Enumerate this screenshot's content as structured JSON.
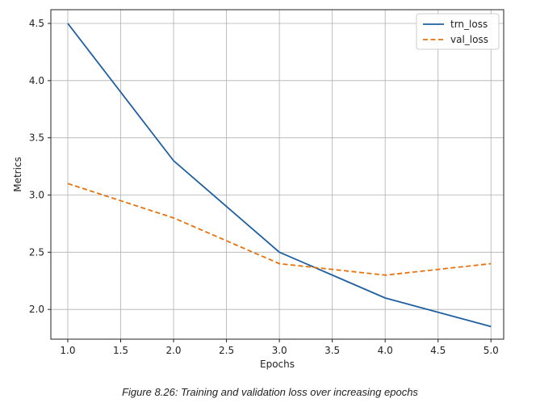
{
  "chart_data": {
    "type": "line",
    "xlabel": "Epochs",
    "ylabel": "Metrics",
    "xlim": [
      0.84,
      5.12
    ],
    "ylim": [
      1.74,
      4.62
    ],
    "xticks": [
      1.0,
      1.5,
      2.0,
      2.5,
      3.0,
      3.5,
      4.0,
      4.5,
      5.0
    ],
    "yticks": [
      2.0,
      2.5,
      3.0,
      3.5,
      4.0,
      4.5
    ],
    "grid": true,
    "legend_position": "top-right",
    "series": [
      {
        "name": "trn_loss",
        "color": "#1f5fa0",
        "style": "solid",
        "x": [
          1.0,
          2.0,
          3.0,
          4.0,
          5.0
        ],
        "y": [
          4.5,
          3.3,
          2.5,
          2.1,
          1.85
        ]
      },
      {
        "name": "val_loss",
        "color": "#e8710a",
        "style": "dashed",
        "x": [
          1.0,
          2.0,
          3.0,
          4.0,
          5.0
        ],
        "y": [
          3.1,
          2.8,
          2.4,
          2.3,
          2.4
        ]
      }
    ]
  },
  "caption": "Figure 8.26: Training and validation loss over increasing epochs"
}
